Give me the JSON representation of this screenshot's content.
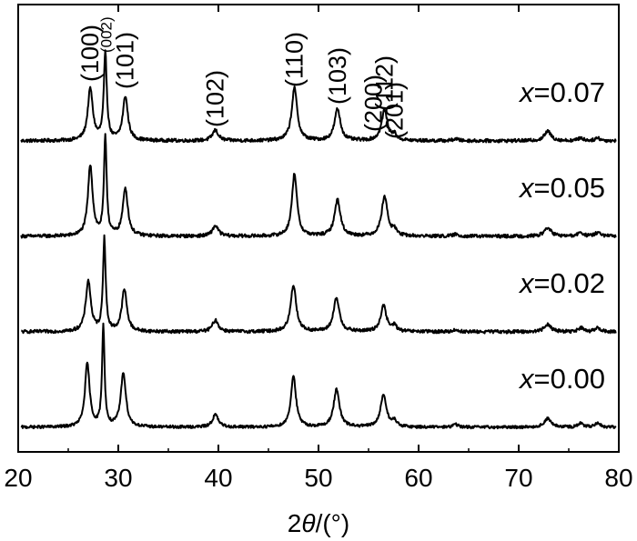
{
  "chart_data": {
    "type": "line",
    "xlabel": "2θ/(°)",
    "xlabel_parts": {
      "number": "2",
      "symbol": "θ",
      "unit": "/(°)"
    },
    "ylabel": "",
    "xlim": [
      20,
      80
    ],
    "xticks": [
      20,
      30,
      40,
      50,
      60,
      70,
      80
    ],
    "yticks_shown": false,
    "grid": false,
    "peaks": [
      {
        "hkl": "(100)",
        "x": 27.2
      },
      {
        "hkl": "(002)",
        "x": 28.7
      },
      {
        "hkl": "(101)",
        "x": 30.7
      },
      {
        "hkl": "(102)",
        "x": 39.7
      },
      {
        "hkl": "(110)",
        "x": 47.6
      },
      {
        "hkl": "(103)",
        "x": 51.9
      },
      {
        "hkl": "(200)",
        "x": 55.5
      },
      {
        "hkl": "(112)",
        "x": 56.6
      },
      {
        "hkl": "(201)",
        "x": 57.6
      }
    ],
    "series": [
      {
        "name": "x=0.07",
        "var": "x",
        "val": "=0.07",
        "offset": 3,
        "noise": 0.35,
        "baseline": 0.2,
        "peaks": [
          [
            27.2,
            5.4,
            0.3
          ],
          [
            28.7,
            9.0,
            0.18
          ],
          [
            30.7,
            4.6,
            0.3
          ],
          [
            39.7,
            1.1,
            0.35
          ],
          [
            47.6,
            5.5,
            0.33
          ],
          [
            51.9,
            3.3,
            0.35
          ],
          [
            56.6,
            3.2,
            0.35
          ],
          [
            57.6,
            0.6,
            0.25
          ],
          [
            63.7,
            0.2,
            0.3
          ],
          [
            72.9,
            1.0,
            0.4
          ],
          [
            76.2,
            0.3,
            0.3
          ],
          [
            77.9,
            0.3,
            0.3
          ]
        ]
      },
      {
        "name": "x=0.05",
        "var": "x",
        "val": "=0.05",
        "offset": 2,
        "noise": 0.35,
        "baseline": 0.2,
        "peaks": [
          [
            27.2,
            7.4,
            0.28
          ],
          [
            28.7,
            10.3,
            0.16
          ],
          [
            30.7,
            5.0,
            0.3
          ],
          [
            39.7,
            1.1,
            0.35
          ],
          [
            47.6,
            6.6,
            0.3
          ],
          [
            51.9,
            3.8,
            0.35
          ],
          [
            56.6,
            4.2,
            0.35
          ],
          [
            57.6,
            0.6,
            0.25
          ],
          [
            63.7,
            0.2,
            0.3
          ],
          [
            72.9,
            0.9,
            0.4
          ],
          [
            76.2,
            0.4,
            0.3
          ],
          [
            77.9,
            0.4,
            0.3
          ]
        ]
      },
      {
        "name": "x=0.02",
        "var": "x",
        "val": "=0.02",
        "offset": 1,
        "noise": 0.35,
        "baseline": 0.2,
        "peaks": [
          [
            27.0,
            5.3,
            0.3
          ],
          [
            28.6,
            9.7,
            0.16
          ],
          [
            30.6,
            4.4,
            0.3
          ],
          [
            39.7,
            1.2,
            0.35
          ],
          [
            47.5,
            4.9,
            0.33
          ],
          [
            51.8,
            3.5,
            0.35
          ],
          [
            56.5,
            2.7,
            0.35
          ],
          [
            57.6,
            0.6,
            0.25
          ],
          [
            63.7,
            0.2,
            0.3
          ],
          [
            72.9,
            0.8,
            0.4
          ],
          [
            76.2,
            0.4,
            0.3
          ],
          [
            77.9,
            0.4,
            0.3
          ]
        ]
      },
      {
        "name": "x=0.00",
        "var": "x",
        "val": "=0.00",
        "offset": 0,
        "noise": 0.3,
        "baseline": 0.2,
        "peaks": [
          [
            26.9,
            6.6,
            0.28
          ],
          [
            28.5,
            10.5,
            0.15
          ],
          [
            30.5,
            5.7,
            0.3
          ],
          [
            39.7,
            1.3,
            0.35
          ],
          [
            47.5,
            5.4,
            0.3
          ],
          [
            51.8,
            3.9,
            0.35
          ],
          [
            56.5,
            3.4,
            0.35
          ],
          [
            57.6,
            0.6,
            0.25
          ],
          [
            63.7,
            0.3,
            0.3
          ],
          [
            72.9,
            0.9,
            0.4
          ],
          [
            76.2,
            0.4,
            0.3
          ],
          [
            77.9,
            0.4,
            0.3
          ]
        ]
      }
    ]
  }
}
